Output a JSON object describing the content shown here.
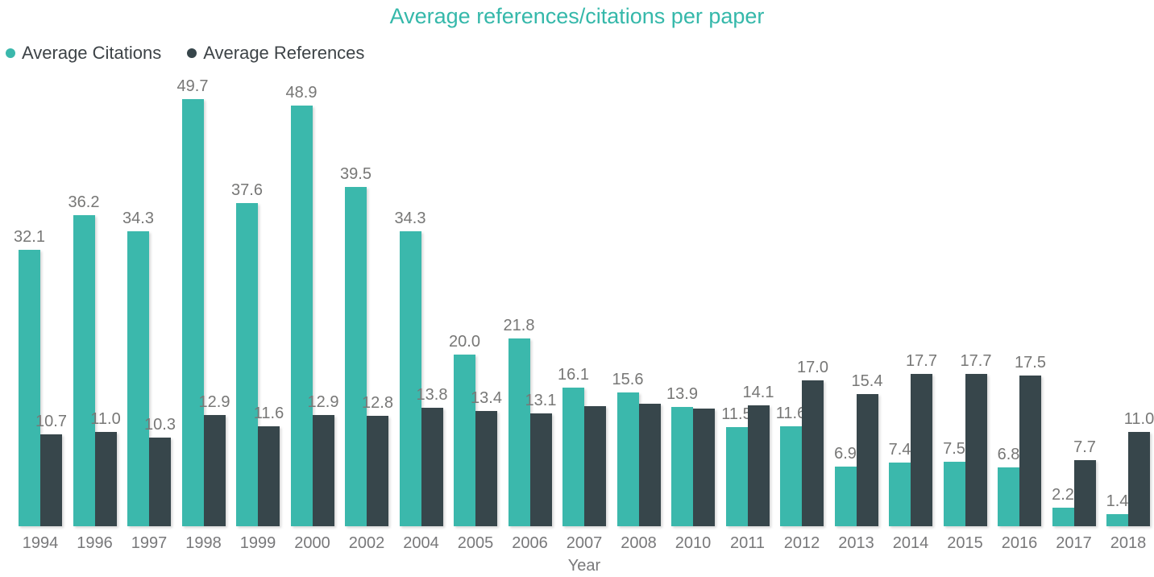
{
  "title": {
    "text": "Average references/citations per paper",
    "color": "#35B8AA"
  },
  "legend": {
    "items": [
      {
        "label": "Average Citations",
        "color": "#3BB8AC"
      },
      {
        "label": "Average References",
        "color": "#37464B"
      }
    ]
  },
  "x_axis": {
    "label": "Year"
  },
  "chart_data": {
    "type": "bar",
    "title": "Average references/citations per paper",
    "xlabel": "Year",
    "ylabel": "",
    "ylim": [
      0,
      50
    ],
    "grid": false,
    "legend_position": "top-left",
    "label_color": "#777776",
    "categories": [
      "1994",
      "1996",
      "1997",
      "1998",
      "1999",
      "2000",
      "2002",
      "2004",
      "2005",
      "2006",
      "2007",
      "2008",
      "2010",
      "2011",
      "2012",
      "2013",
      "2014",
      "2015",
      "2016",
      "2017",
      "2018"
    ],
    "series": [
      {
        "name": "Average Citations",
        "color": "#3BB8AC",
        "values": [
          32.1,
          36.2,
          34.3,
          49.7,
          37.6,
          48.9,
          39.5,
          34.3,
          20.0,
          21.8,
          16.1,
          15.6,
          13.9,
          11.5,
          11.6,
          6.9,
          7.4,
          7.5,
          6.8,
          2.2,
          1.4
        ],
        "labels": [
          "32.1",
          "36.2",
          "34.3",
          "49.7",
          "37.6",
          "48.9",
          "39.5",
          "34.3",
          "20.0",
          "21.8",
          "16.1",
          "15.6",
          "13.9",
          "11.5",
          "11.6",
          "6.9",
          "7.4",
          "7.5",
          "6.8",
          "2.2",
          "1.4"
        ]
      },
      {
        "name": "Average References",
        "color": "#37464B",
        "values": [
          10.7,
          11.0,
          10.3,
          12.9,
          11.6,
          12.9,
          12.8,
          13.8,
          13.4,
          13.1,
          14.0,
          14.2,
          13.7,
          14.1,
          17.0,
          15.4,
          17.7,
          17.7,
          17.5,
          7.7,
          11.0
        ],
        "labels": [
          "10.7",
          "11.0",
          "10.3",
          "12.9",
          "11.6",
          "12.9",
          "12.8",
          "13.8",
          "13.4",
          "13.1",
          null,
          null,
          null,
          "14.1",
          "17.0",
          "15.4",
          "17.7",
          "17.7",
          "17.5",
          "7.7",
          "11.0"
        ]
      }
    ]
  }
}
